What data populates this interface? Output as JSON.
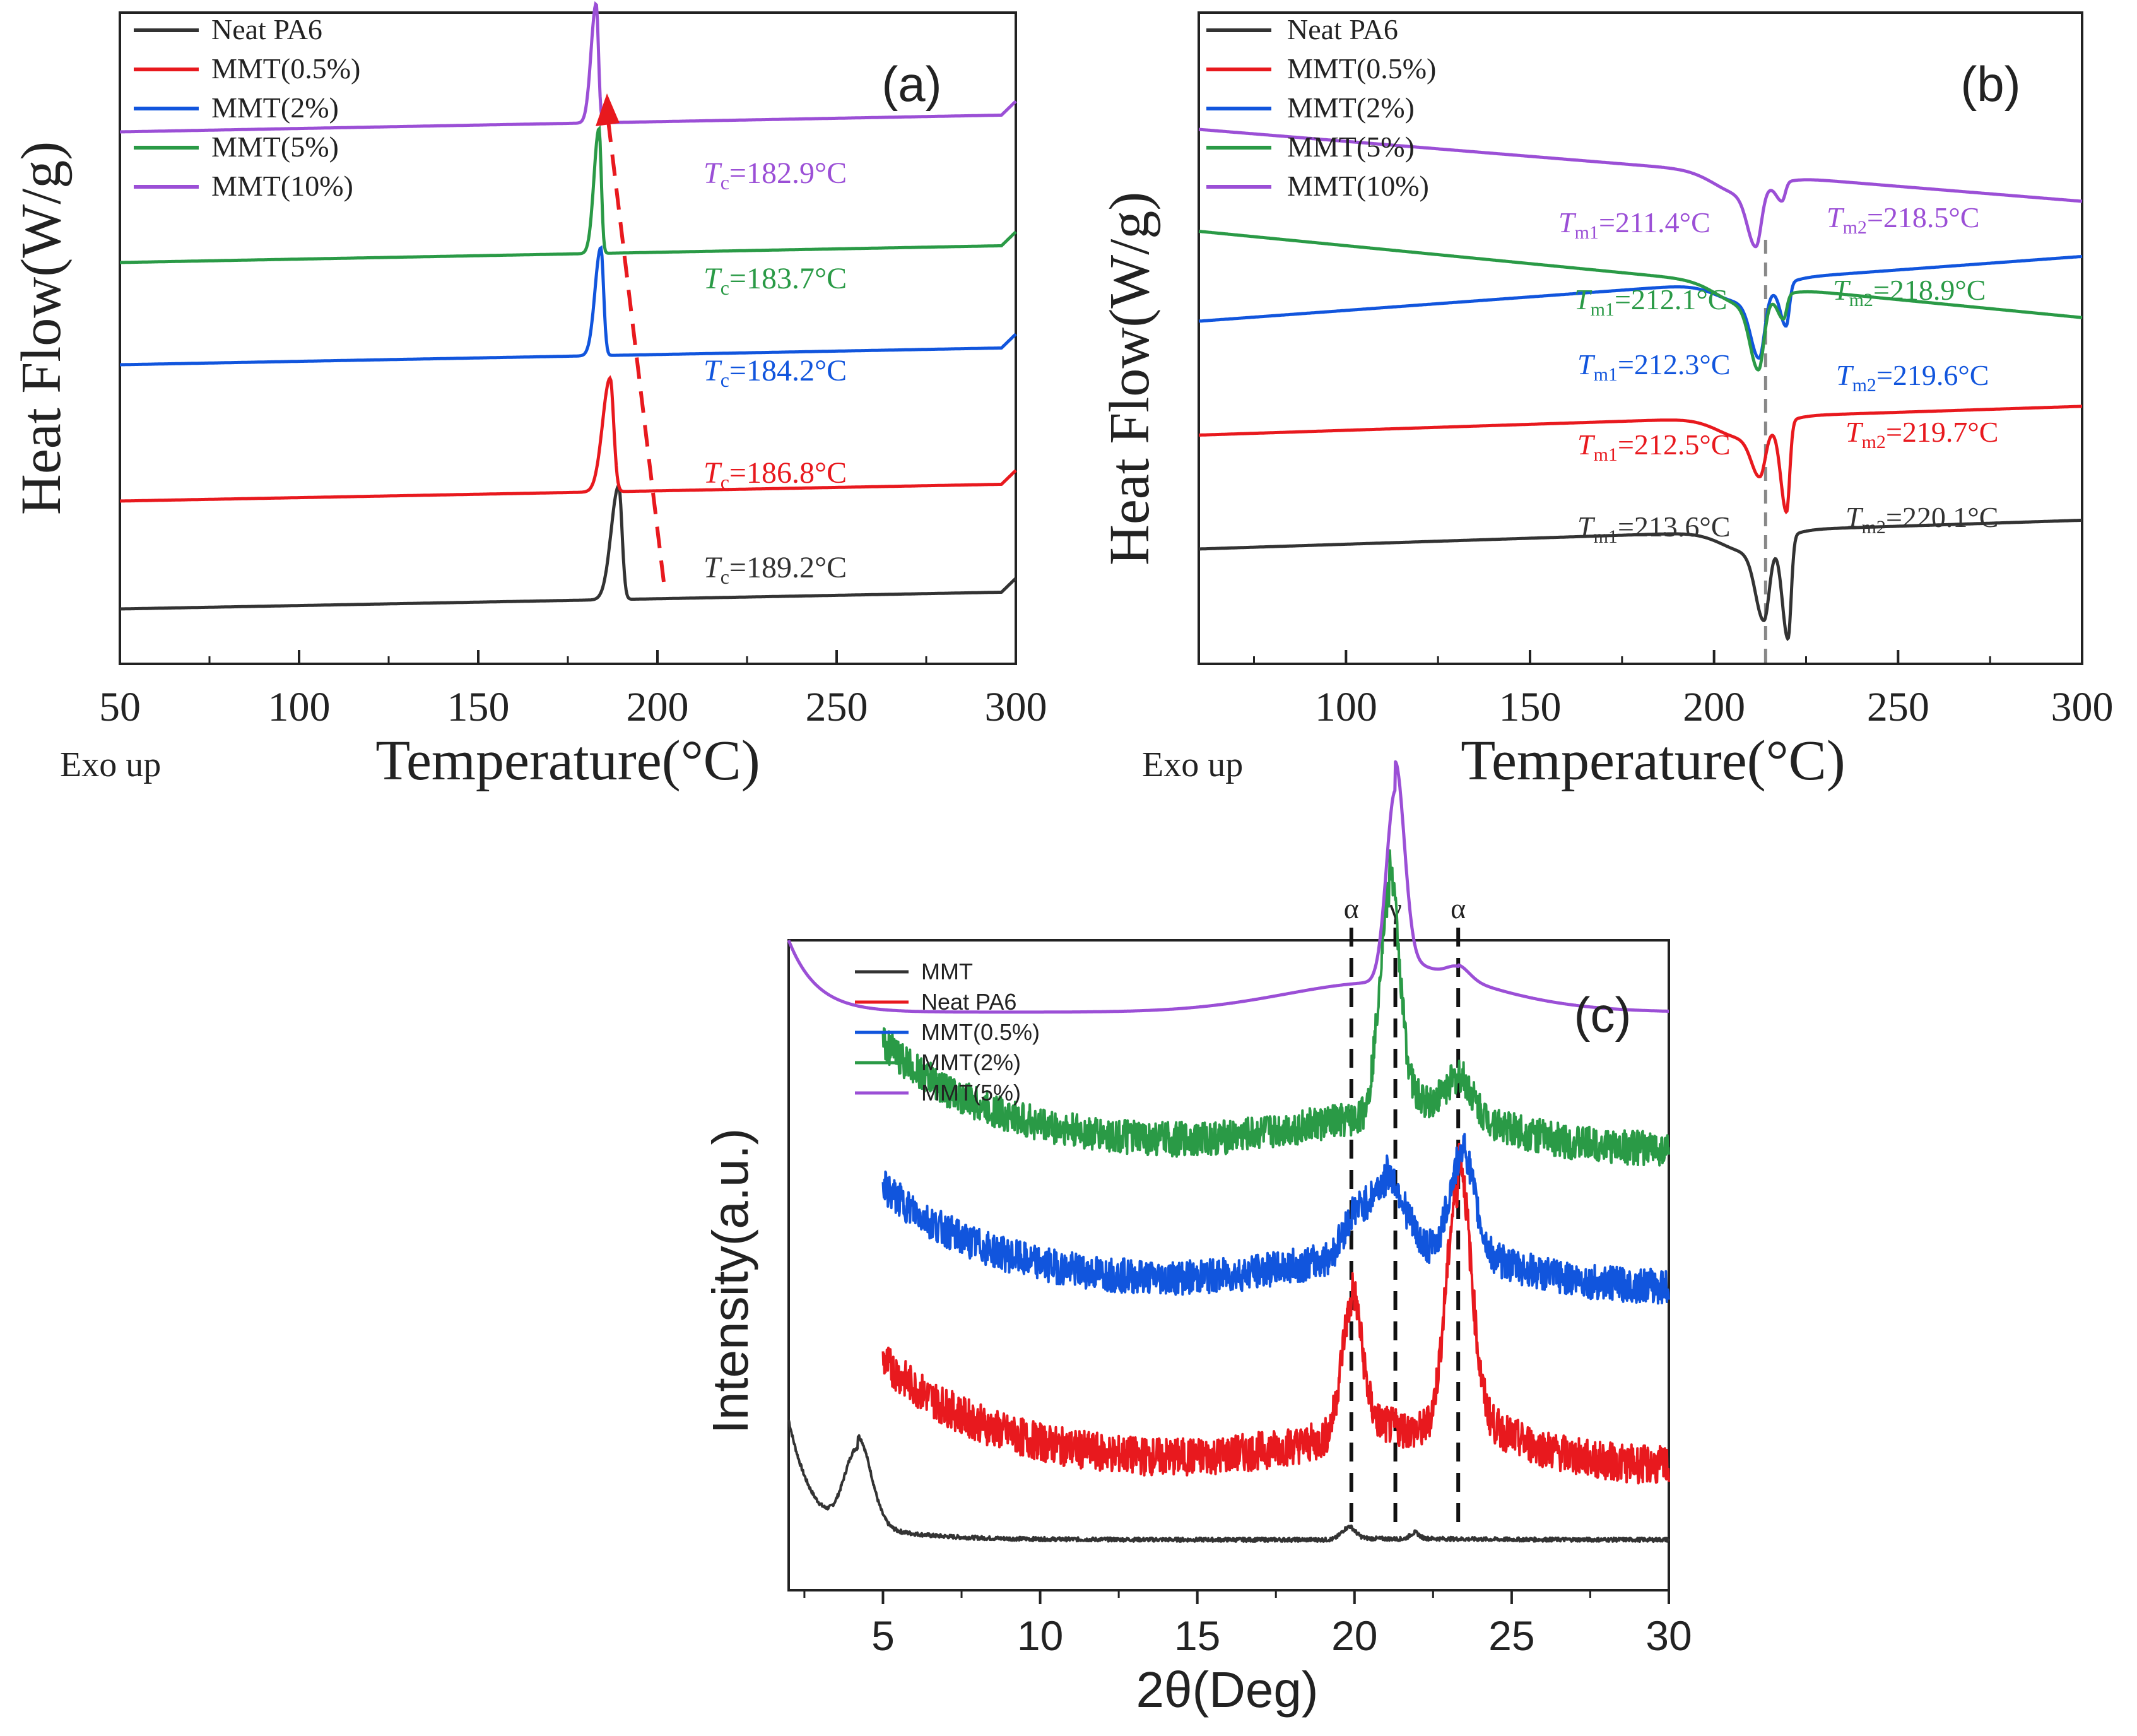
{
  "chart_data": [
    {
      "id": "a",
      "type": "line",
      "panel_label": "(a)",
      "xlabel": "Temperature(°C)",
      "ylabel": "Heat Flow(W/g)",
      "note": "Exo up",
      "xlim": [
        50,
        300
      ],
      "xticks": [
        "50",
        "100",
        "150",
        "200",
        "250",
        "300"
      ],
      "yunits": "arbitrary (stacked, offset)",
      "legend": [
        "Neat PA6",
        "MMT(0.5%)",
        "MMT(2%)",
        "MMT(5%)",
        "MMT(10%)"
      ],
      "series": [
        {
          "name": "Neat PA6",
          "color": "#333333",
          "baseline": 0.0,
          "slope": 0.00012,
          "peak": {
            "type": "exo",
            "x": 189.2,
            "height": 0.2,
            "width_left": 3.0,
            "width_right": 1.3
          },
          "label_main": "T",
          "label_sub": "c",
          "label_value": "=189.2°C"
        },
        {
          "name": "MMT(0.5%)",
          "color": "#e8191e",
          "baseline": 0.19,
          "slope": 0.00012,
          "peak": {
            "type": "exo",
            "x": 186.8,
            "height": 0.2,
            "width_left": 3.0,
            "width_right": 1.4
          },
          "label_main": "T",
          "label_sub": "c",
          "label_value": "=186.8°C"
        },
        {
          "name": "MMT(2%)",
          "color": "#1155dd",
          "baseline": 0.43,
          "slope": 0.00012,
          "peak": {
            "type": "exo",
            "x": 184.2,
            "height": 0.19,
            "width_left": 2.3,
            "width_right": 1.1
          },
          "label_main": "T",
          "label_sub": "c",
          "label_value": "=184.2°C"
        },
        {
          "name": "MMT(5%)",
          "color": "#2a9a46",
          "baseline": 0.61,
          "slope": 0.00012,
          "peak": {
            "type": "exo",
            "x": 183.7,
            "height": 0.22,
            "width_left": 2.0,
            "width_right": 0.9
          },
          "label_main": "T",
          "label_sub": "c",
          "label_value": "=183.7°C"
        },
        {
          "name": "MMT(10%)",
          "color": "#9b4fd6",
          "baseline": 0.84,
          "slope": 0.00012,
          "peak": {
            "type": "exo",
            "x": 182.9,
            "height": 0.21,
            "width_left": 2.0,
            "width_right": 0.9
          },
          "label_main": "T",
          "label_sub": "c",
          "label_value": "=182.9°C"
        }
      ],
      "annotation": "dashed red arrow showing Tc shifts to lower temperature with increasing MMT"
    },
    {
      "id": "b",
      "type": "line",
      "panel_label": "(b)",
      "xlabel": "Temperature(°C)",
      "ylabel": "Heat Flow(W/g)",
      "note": "Exo up",
      "xlim": [
        60,
        300
      ],
      "xticks": [
        "100",
        "150",
        "200",
        "250",
        "300"
      ],
      "yunits": "arbitrary (stacked, offset)",
      "reference_line_x": 214,
      "legend": [
        "Neat PA6",
        "MMT(0.5%)",
        "MMT(2%)",
        "MMT(5%)",
        "MMT(10%)"
      ],
      "series": [
        {
          "name": "Neat PA6",
          "color": "#333333",
          "baseline": 0.0,
          "slope": 0.0002,
          "tm1": 213.6,
          "tm2": 220.1,
          "depth1": 0.12,
          "depth2": 0.17,
          "label_m1": "=213.6°C",
          "label_m2": "=220.1°C"
        },
        {
          "name": "MMT(0.5%)",
          "color": "#e8191e",
          "baseline": 0.19,
          "slope": 0.0002,
          "tm1": 212.5,
          "tm2": 219.7,
          "depth1": 0.07,
          "depth2": 0.15,
          "label_m1": "=212.5°C",
          "label_m2": "=219.7°C"
        },
        {
          "name": "MMT(2%)",
          "color": "#1155dd",
          "baseline": 0.38,
          "slope": 0.00045,
          "tm1": 212.3,
          "tm2": 219.6,
          "depth1": 0.1,
          "depth2": 0.07,
          "label_m1": "=212.3°C",
          "label_m2": "=219.6°C"
        },
        {
          "name": "MMT(5%)",
          "color": "#2a9a46",
          "baseline": 0.53,
          "slope": -0.0006,
          "tm1": 212.1,
          "tm2": 218.9,
          "depth1": 0.11,
          "depth2": 0.04,
          "label_m1": "=212.1°C",
          "label_m2": "=218.9°C"
        },
        {
          "name": "MMT(10%)",
          "color": "#9b4fd6",
          "baseline": 0.7,
          "slope": -0.0005,
          "tm1": 211.4,
          "tm2": 218.5,
          "depth1": 0.09,
          "depth2": 0.03,
          "label_m1": "=211.4°C",
          "label_m2": "=218.5°C"
        }
      ],
      "label_m1_main": "T",
      "label_m1_sub": "m1",
      "label_m2_main": "T",
      "label_m2_sub": "m2"
    },
    {
      "id": "c",
      "type": "line",
      "panel_label": "(c)",
      "xlabel": "2θ(Deg)",
      "ylabel": "Intensity(a.u.)",
      "xlim": [
        2,
        30
      ],
      "xticks": [
        "5",
        "10",
        "15",
        "20",
        "25",
        "30"
      ],
      "yunits": "arbitrary (stacked, offset)",
      "reference_lines": [
        {
          "x": 19.9,
          "label": "α"
        },
        {
          "x": 21.3,
          "label": "γ"
        },
        {
          "x": 23.3,
          "label": "α"
        }
      ],
      "legend": [
        "MMT",
        "Neat PA6",
        "MMT(0.5%)",
        "MMT(2%)",
        "MMT(5%)"
      ],
      "series": [
        {
          "name": "MMT",
          "color": "#333333",
          "xstart": 2.0,
          "baseline": 0.0,
          "noise": 0.002,
          "peaks": [
            [
              4.2,
              0.14,
              0.6
            ],
            [
              19.8,
              0.02,
              0.3
            ],
            [
              21.9,
              0.01,
              0.2
            ]
          ],
          "lowangle": 0.2
        },
        {
          "name": "Neat PA6",
          "color": "#e8191e",
          "xstart": 5.0,
          "baseline": 0.12,
          "noise": 0.02,
          "peaks": [
            [
              19.9,
              0.22,
              0.45
            ],
            [
              23.3,
              0.42,
              0.55
            ]
          ],
          "lowangle": 0.18
        },
        {
          "name": "MMT(0.5%)",
          "color": "#1155dd",
          "xstart": 5.0,
          "baseline": 0.42,
          "noise": 0.018,
          "peaks": [
            [
              19.9,
              0.05,
              0.5
            ],
            [
              21.0,
              0.12,
              0.8
            ],
            [
              23.4,
              0.17,
              0.55
            ]
          ],
          "lowangle": 0.17
        },
        {
          "name": "MMT(2%)",
          "color": "#2a9a46",
          "xstart": 5.0,
          "baseline": 0.65,
          "noise": 0.018,
          "peaks": [
            [
              21.1,
              0.37,
              0.45
            ],
            [
              23.3,
              0.06,
              0.6
            ]
          ],
          "lowangle": 0.18
        },
        {
          "name": "MMT(5%)",
          "color": "#9b4fd6",
          "xstart": 2.0,
          "baseline": 0.88,
          "noise": 0.0,
          "peaks": [
            [
              21.3,
              0.32,
              0.4
            ],
            [
              23.3,
              0.02,
              0.5
            ]
          ],
          "lowangle": 0.12
        }
      ]
    }
  ]
}
